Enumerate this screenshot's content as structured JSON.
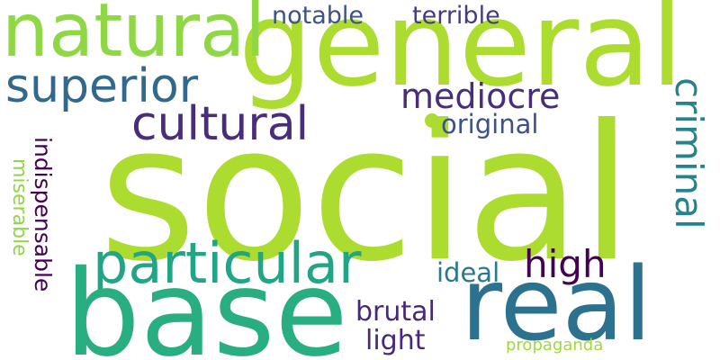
{
  "words": {
    "social": {
      "text": "social",
      "color": "#addc30"
    },
    "general": {
      "text": "general",
      "color": "#addc30"
    },
    "base": {
      "text": "base",
      "color": "#28ae80"
    },
    "real": {
      "text": "real",
      "color": "#2c728e"
    },
    "natural": {
      "text": "natural",
      "color": "#8fd744"
    },
    "superior": {
      "text": "superior",
      "color": "#31688e"
    },
    "cultural": {
      "text": "cultural",
      "color": "#472d7b"
    },
    "particular": {
      "text": "particular",
      "color": "#21a585"
    },
    "mediocre": {
      "text": "mediocre",
      "color": "#472d7b"
    },
    "notable": {
      "text": "notable",
      "color": "#3b528b"
    },
    "terrible": {
      "text": "terrible",
      "color": "#443a83"
    },
    "original": {
      "text": "original",
      "color": "#3b528b"
    },
    "high": {
      "text": "high",
      "color": "#440154"
    },
    "ideal": {
      "text": "ideal",
      "color": "#2a788e"
    },
    "brutal": {
      "text": "brutal",
      "color": "#482878"
    },
    "light": {
      "text": "light",
      "color": "#482878"
    },
    "propaganda": {
      "text": "propaganda",
      "color": "#a0da39"
    },
    "criminal": {
      "text": "criminal",
      "color": "#25838e"
    },
    "indispensable": {
      "text": "indispensable",
      "color": "#440154"
    },
    "miserable": {
      "text": "miserable",
      "color": "#8fd744"
    }
  },
  "dot_color": "#addc30"
}
